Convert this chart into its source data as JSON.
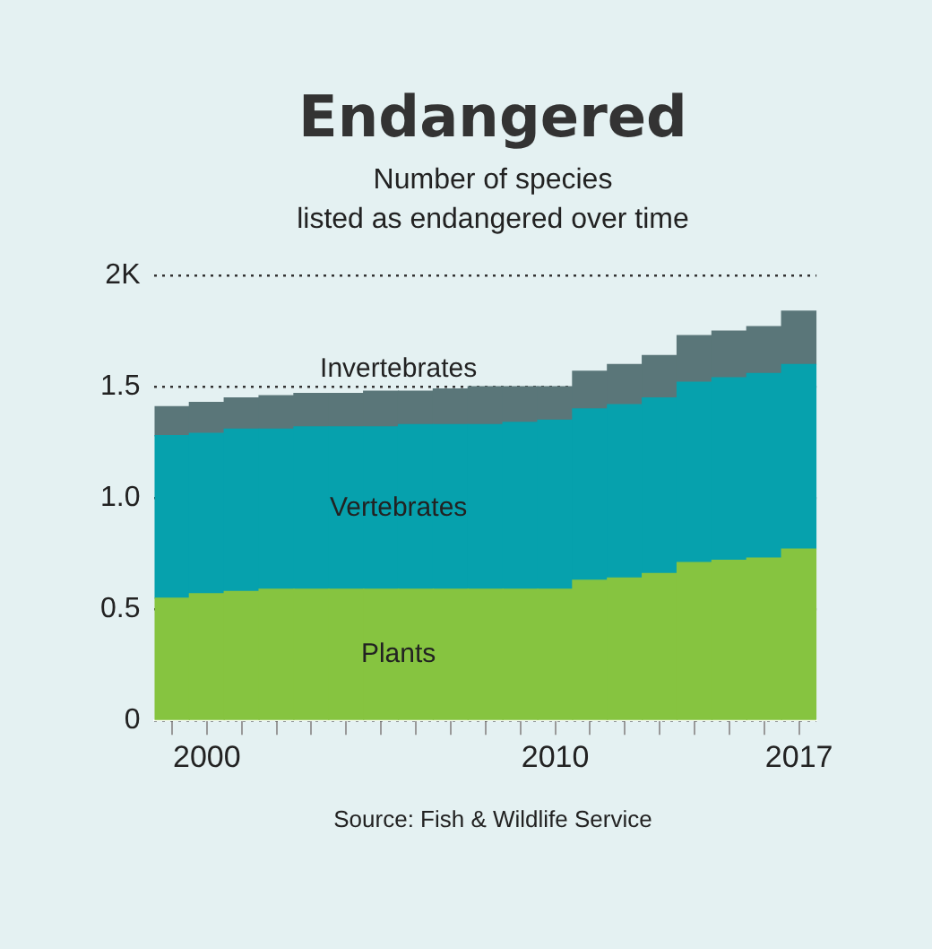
{
  "chart_data": {
    "type": "bar",
    "title": "Endangered",
    "subtitle": "Number of species\nlisted as endangered over time",
    "stacked": true,
    "categories": [
      null,
      "2000",
      null,
      null,
      null,
      null,
      null,
      null,
      null,
      null,
      null,
      "2010",
      null,
      null,
      null,
      null,
      null,
      null,
      "2017"
    ],
    "series": [
      {
        "name": "Plants",
        "color": "#86c440",
        "values": [
          0.55,
          0.57,
          0.58,
          0.59,
          0.59,
          0.59,
          0.59,
          0.59,
          0.59,
          0.59,
          0.59,
          0.59,
          0.63,
          0.64,
          0.66,
          0.71,
          0.72,
          0.73,
          0.77
        ]
      },
      {
        "name": "Vertebrates",
        "color": "#06a1ad",
        "values": [
          0.73,
          0.72,
          0.73,
          0.72,
          0.73,
          0.73,
          0.73,
          0.74,
          0.74,
          0.74,
          0.75,
          0.76,
          0.77,
          0.78,
          0.79,
          0.81,
          0.82,
          0.83,
          0.83
        ]
      },
      {
        "name": "Invertebrates",
        "color": "#5a7679",
        "values": [
          0.13,
          0.14,
          0.14,
          0.15,
          0.15,
          0.15,
          0.16,
          0.15,
          0.16,
          0.17,
          0.16,
          0.15,
          0.17,
          0.18,
          0.19,
          0.21,
          0.21,
          0.21,
          0.24
        ]
      }
    ],
    "ylim": [
      0,
      2
    ],
    "yticks": [
      0,
      0.5,
      {
        "value": 1,
        "label": "1.0"
      },
      1.5,
      {
        "value": 2,
        "label": "2K"
      }
    ],
    "grid": "y",
    "legend": false,
    "annotations": [
      "Source: Fish & Wildlife Service"
    ]
  }
}
